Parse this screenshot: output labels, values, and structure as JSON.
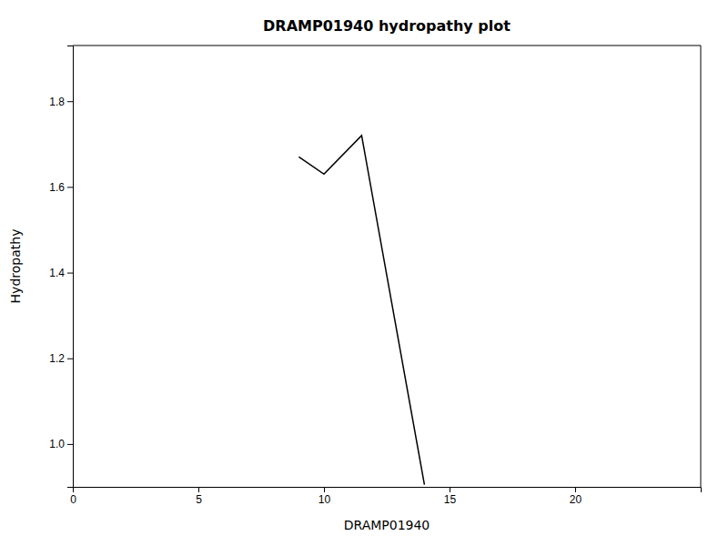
{
  "chart_data": {
    "type": "line",
    "title": "DRAMP01940 hydropathy plot",
    "xlabel": "DRAMP01940",
    "ylabel": "Hydropathy",
    "x": [
      9.0,
      10.0,
      11.5,
      14.0
    ],
    "values": [
      1.67,
      1.63,
      1.72,
      0.905
    ],
    "color": "#000000",
    "xlim": [
      0,
      25
    ],
    "ylim": [
      0.9,
      1.93
    ],
    "xticks": [
      0,
      5,
      10,
      15,
      20
    ],
    "yticks": [
      {
        "value": 1.0,
        "label": "1.0"
      },
      1.2,
      1.4,
      1.6,
      1.8
    ],
    "grid": false
  }
}
